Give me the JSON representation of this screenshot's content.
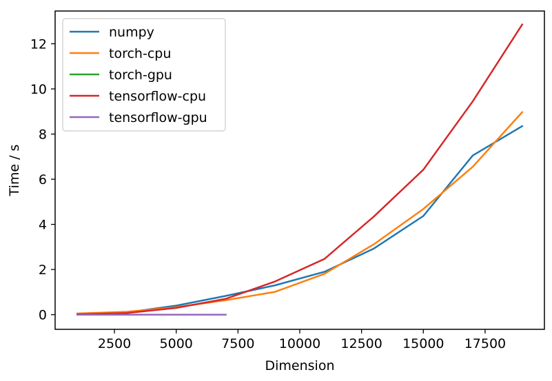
{
  "chart_data": {
    "type": "line",
    "xlabel": "Dimension",
    "ylabel": "Time / s",
    "xlim": [
      100,
      19900
    ],
    "ylim": [
      -0.65,
      13.45
    ],
    "xticks": [
      2500,
      5000,
      7500,
      10000,
      12500,
      15000,
      17500
    ],
    "xtick_labels": [
      "2500",
      "5000",
      "7500",
      "10000",
      "12500",
      "15000",
      "17500"
    ],
    "yticks": [
      0,
      2,
      4,
      6,
      8,
      10,
      12
    ],
    "ytick_labels": [
      "0",
      "2",
      "4",
      "6",
      "8",
      "10",
      "12"
    ],
    "grid": false,
    "legend_position": "top-left",
    "series": [
      {
        "name": "numpy",
        "color": "#1f77b4",
        "x": [
          1000,
          3000,
          5000,
          7000,
          9000,
          11000,
          13000,
          15000,
          17000,
          19000
        ],
        "y": [
          0.02,
          0.1,
          0.4,
          0.83,
          1.3,
          1.9,
          2.93,
          4.37,
          7.05,
          8.35
        ]
      },
      {
        "name": "torch-cpu",
        "color": "#ff7f0e",
        "x": [
          1000,
          3000,
          5000,
          7000,
          9000,
          11000,
          13000,
          15000,
          17000,
          19000
        ],
        "y": [
          0.05,
          0.13,
          0.33,
          0.64,
          1.01,
          1.81,
          3.12,
          4.68,
          6.55,
          8.97
        ]
      },
      {
        "name": "torch-gpu",
        "color": "#2ca02c",
        "x": [
          1000,
          3000,
          5000,
          7000
        ],
        "y": [
          0.0,
          0.0,
          0.0,
          0.0
        ]
      },
      {
        "name": "tensorflow-cpu",
        "color": "#d62728",
        "x": [
          1000,
          3000,
          5000,
          7000,
          9000,
          11000,
          13000,
          15000,
          17000,
          19000
        ],
        "y": [
          0.02,
          0.07,
          0.3,
          0.7,
          1.47,
          2.47,
          4.35,
          6.42,
          9.45,
          12.85
        ]
      },
      {
        "name": "tensorflow-gpu",
        "color": "#9467bd",
        "x": [
          1000,
          3000,
          5000,
          7000
        ],
        "y": [
          0.0,
          0.0,
          0.0,
          0.0
        ]
      }
    ]
  }
}
